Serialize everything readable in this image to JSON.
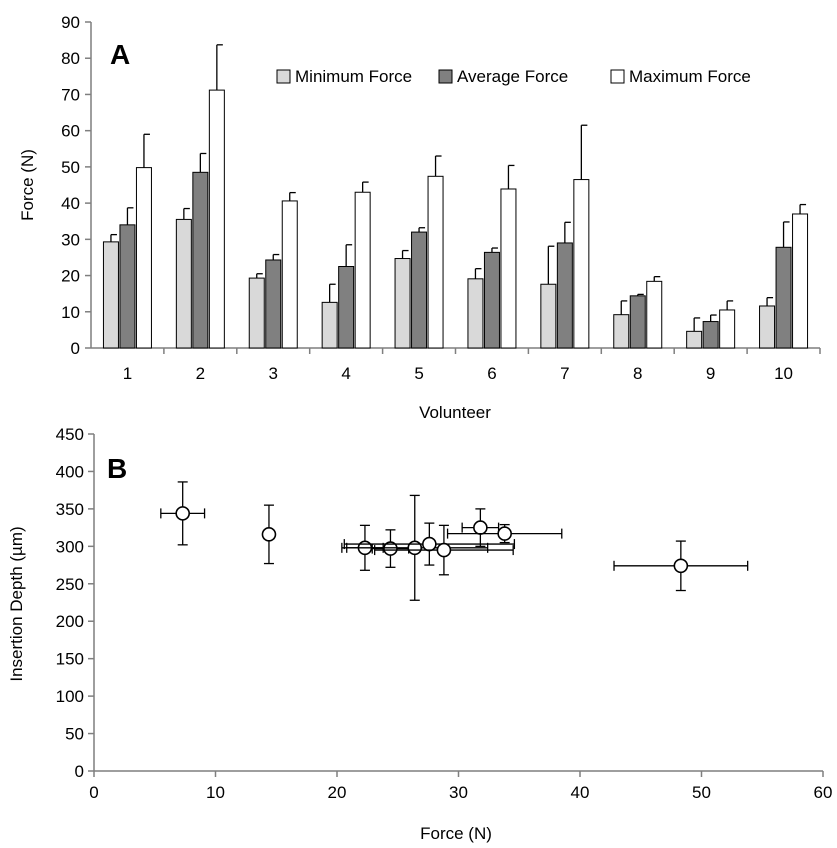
{
  "chart_data": [
    {
      "type": "bar",
      "panel_label": "A",
      "xlabel": "Volunteer",
      "ylabel": "Force (N)",
      "ylim": [
        0,
        90
      ],
      "yticks": [
        0,
        10,
        20,
        30,
        40,
        50,
        60,
        70,
        80,
        90
      ],
      "legend_position": "top-right",
      "categories": [
        "1",
        "2",
        "3",
        "4",
        "5",
        "6",
        "7",
        "8",
        "9",
        "10"
      ],
      "series": [
        {
          "name": "Minimum Force",
          "color": "#d9d9d9",
          "values": [
            29.3,
            35.5,
            19.3,
            12.6,
            24.7,
            19.1,
            17.6,
            9.2,
            4.6,
            11.6
          ],
          "errors": [
            2.0,
            3.0,
            1.2,
            5.0,
            2.2,
            2.8,
            10.5,
            3.8,
            3.7,
            2.3
          ]
        },
        {
          "name": "Average Force",
          "color": "#808080",
          "values": [
            34.0,
            48.5,
            24.3,
            22.5,
            32.0,
            26.4,
            29.0,
            14.4,
            7.3,
            27.8
          ],
          "errors": [
            4.7,
            5.2,
            1.5,
            6.0,
            1.2,
            1.2,
            5.7,
            0.4,
            1.8,
            7.0
          ]
        },
        {
          "name": "Maximum Force",
          "color": "#ffffff",
          "values": [
            49.8,
            71.2,
            40.6,
            43.0,
            47.4,
            43.9,
            46.5,
            18.4,
            10.5,
            37.0
          ],
          "errors": [
            9.2,
            12.5,
            2.3,
            2.8,
            5.6,
            6.5,
            15.0,
            1.3,
            2.5,
            2.6
          ]
        }
      ]
    },
    {
      "type": "scatter",
      "panel_label": "B",
      "xlabel": "Force (N)",
      "ylabel": "Insertion Depth (µm)",
      "xlim": [
        0,
        60
      ],
      "ylim": [
        0,
        450
      ],
      "xticks": [
        0,
        10,
        20,
        30,
        40,
        50,
        60
      ],
      "yticks": [
        0,
        50,
        100,
        150,
        200,
        250,
        300,
        350,
        400,
        450
      ],
      "points": [
        {
          "x": 7.3,
          "y": 344,
          "xerr": 1.8,
          "yerr": 42
        },
        {
          "x": 14.4,
          "y": 316,
          "xerr": 0.4,
          "yerr": 39
        },
        {
          "x": 22.3,
          "y": 298,
          "xerr": 1.5,
          "yerr": 30
        },
        {
          "x": 24.4,
          "y": 297,
          "xerr": 1.5,
          "yerr": 25
        },
        {
          "x": 26.4,
          "y": 298,
          "xerr": 6.0,
          "yerr": 70
        },
        {
          "x": 27.6,
          "y": 303,
          "xerr": 7.0,
          "yerr": 28
        },
        {
          "x": 28.8,
          "y": 295,
          "xerr": 5.7,
          "yerr": 33
        },
        {
          "x": 31.8,
          "y": 325,
          "xerr": 1.5,
          "yerr": 25
        },
        {
          "x": 33.8,
          "y": 317,
          "xerr": 4.7,
          "yerr": 12
        },
        {
          "x": 48.3,
          "y": 274,
          "xerr": 5.5,
          "yerr": 33
        }
      ]
    }
  ]
}
